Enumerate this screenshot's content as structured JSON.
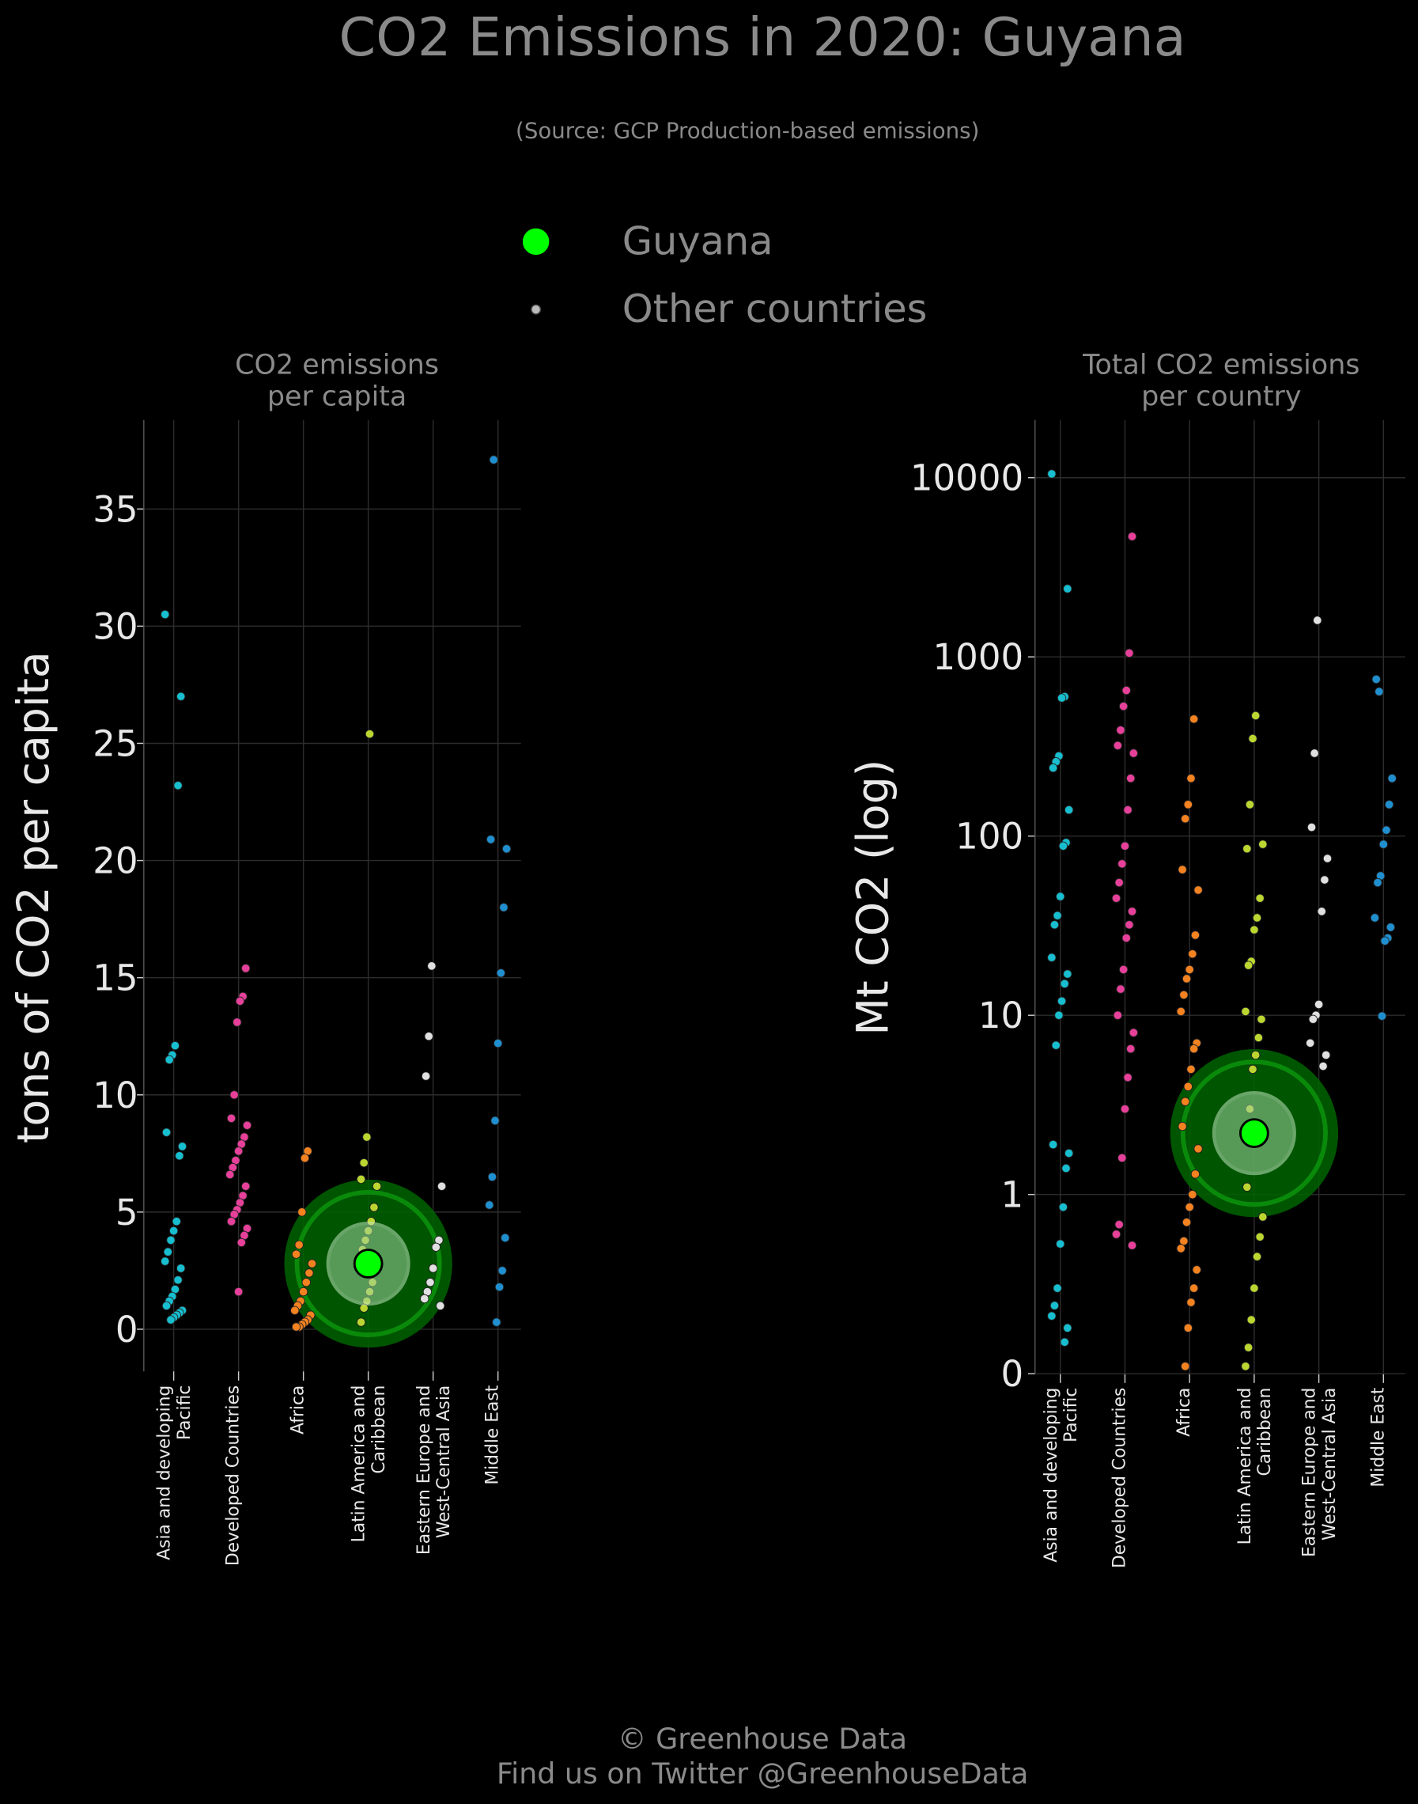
{
  "title": "CO2 Emissions in 2020: Guyana",
  "subtitle": "(Source: GCP Production-based emissions)",
  "legend": {
    "entries": [
      "Guyana",
      "Other countries"
    ],
    "highlight_color": "#00ff00",
    "other_color": "#bbbbbb"
  },
  "footer": [
    "© Greenhouse Data",
    "Find us on Twitter @GreenhouseData"
  ],
  "chart_data": [
    {
      "type": "strip",
      "title": "CO2 emissions\nper capita",
      "y_label": "tons of CO2 per capita",
      "log_scale": false,
      "grid": true,
      "ylim": [
        -1.8,
        38.8
      ],
      "yticks": [
        0,
        5,
        10,
        15,
        20,
        25,
        30,
        35
      ],
      "categories": [
        "Asia and developing\nPacific",
        "Developed Countries",
        "Africa",
        "Latin America and\nCaribbean",
        "Eastern Europe and\nWest-Central Asia",
        "Middle East"
      ],
      "colors": [
        "#17becf",
        "#e7409a",
        "#f58220",
        "#bcd631",
        "#e0e0e0",
        "#1f8fd0"
      ],
      "groups": [
        [
          30.5,
          27,
          23.2,
          12.1,
          11.7,
          11.5,
          8.4,
          7.8,
          7.4,
          4.6,
          4.2,
          3.8,
          3.3,
          2.9,
          2.6,
          2.1,
          1.7,
          1.4,
          1.2,
          1.0,
          0.8,
          0.7,
          0.6,
          0.5,
          0.4
        ],
        [
          15.4,
          14.2,
          14.0,
          13.1,
          10.0,
          9.0,
          8.7,
          8.2,
          7.9,
          7.6,
          7.2,
          6.9,
          6.6,
          6.1,
          5.7,
          5.4,
          5.1,
          4.9,
          4.6,
          4.3,
          4.0,
          3.7,
          1.6
        ],
        [
          7.6,
          7.3,
          5.0,
          3.6,
          3.2,
          2.8,
          2.4,
          2.0,
          1.6,
          1.2,
          1.0,
          0.8,
          0.6,
          0.4,
          0.3,
          0.2,
          0.1,
          0.1
        ],
        [
          25.4,
          8.2,
          7.1,
          6.4,
          6.1,
          5.2,
          4.6,
          4.2,
          3.8,
          3.4,
          3.0,
          2.5,
          2.0,
          1.6,
          1.2,
          0.9,
          0.3
        ],
        [
          15.5,
          12.5,
          10.8,
          6.1,
          3.8,
          3.5,
          2.6,
          2.0,
          1.6,
          1.3,
          1.0
        ],
        [
          37.1,
          20.9,
          20.5,
          18.0,
          15.2,
          12.2,
          8.9,
          6.5,
          5.3,
          3.9,
          2.5,
          1.8,
          0.3
        ]
      ],
      "highlight_category": "Latin America and\nCaribbean",
      "highlight_value": 2.8
    },
    {
      "type": "strip",
      "title": "Total CO2 emissions\nper country",
      "y_label": "Mt CO2 (log)",
      "log_scale": true,
      "grid": true,
      "ylim": [
        0.1,
        21000
      ],
      "yticks": [
        {
          "value": 0.1,
          "label": "0"
        },
        1,
        10,
        100,
        1000,
        10000
      ],
      "categories": [
        "Asia and developing\nPacific",
        "Developed Countries",
        "Africa",
        "Latin America and\nCaribbean",
        "Eastern Europe and\nWest-Central Asia",
        "Middle East"
      ],
      "colors": [
        "#17becf",
        "#e7409a",
        "#f58220",
        "#bcd631",
        "#e0e0e0",
        "#1f8fd0"
      ],
      "groups": [
        [
          10500,
          2400,
          600,
          590,
          280,
          260,
          240,
          140,
          92,
          88,
          46,
          36,
          32,
          21,
          17,
          15,
          12,
          10,
          6.8,
          1.9,
          1.7,
          1.4,
          0.85,
          0.53,
          0.3,
          0.24,
          0.21,
          0.18,
          0.15
        ],
        [
          4700,
          1050,
          650,
          530,
          390,
          320,
          290,
          210,
          140,
          88,
          70,
          55,
          45,
          38,
          32,
          27,
          18,
          14,
          10,
          8,
          6.5,
          4.5,
          3,
          1.6,
          0.68,
          0.6,
          0.52
        ],
        [
          450,
          210,
          150,
          125,
          65,
          50,
          28,
          22,
          18,
          16,
          13,
          10.5,
          7,
          6.5,
          5,
          4,
          3.3,
          2.4,
          1.8,
          1.3,
          1,
          0.85,
          0.7,
          0.55,
          0.5,
          0.38,
          0.3,
          0.25,
          0.18,
          0.11
        ],
        [
          470,
          350,
          150,
          85,
          90,
          45,
          35,
          30,
          20,
          19,
          10.5,
          9.5,
          7.5,
          6,
          5,
          3,
          1.1,
          0.75,
          0.58,
          0.45,
          0.3,
          0.2,
          0.14,
          0.11
        ],
        [
          1600,
          290,
          112,
          75,
          57,
          38,
          11.5,
          10,
          9.5,
          7,
          6,
          5.2
        ],
        [
          640,
          750,
          210,
          150,
          108,
          90,
          60,
          55,
          35,
          31,
          27,
          26,
          9.9
        ]
      ],
      "highlight_category": "Latin America and\nCaribbean",
      "highlight_value": 2.2
    }
  ]
}
